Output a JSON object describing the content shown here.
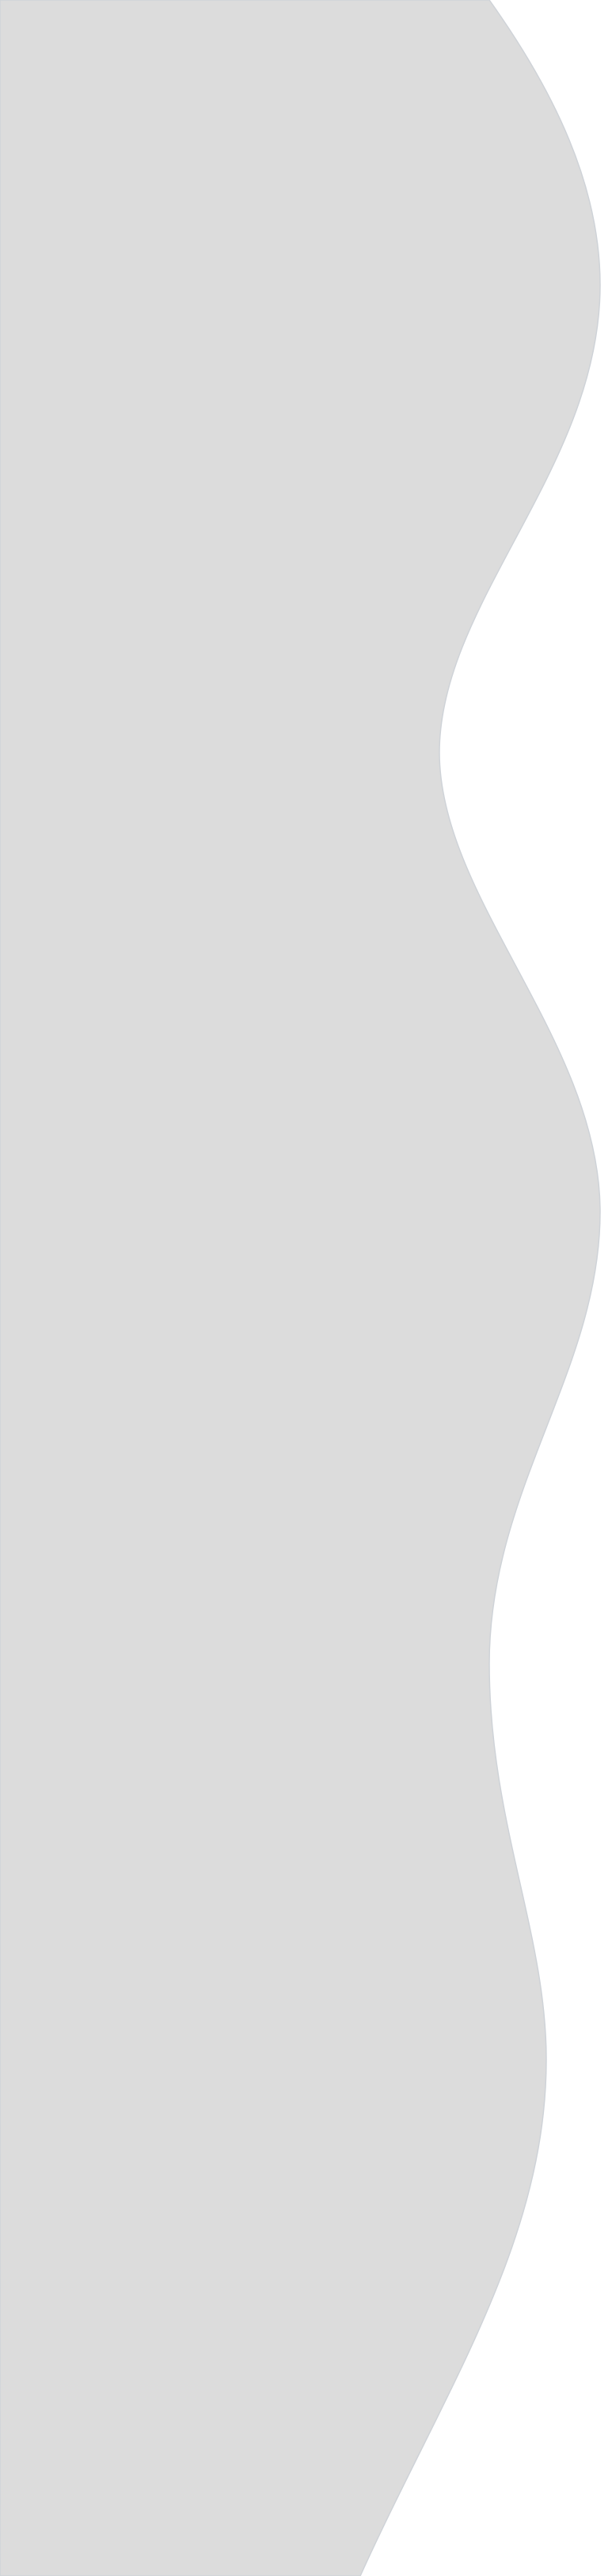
{
  "background": {
    "page_color": "#ffffff",
    "shape_fill": "#dcdcdc",
    "shape_stroke": "#cfd3d8",
    "shape_description_name": "wavy-grey-panel"
  }
}
